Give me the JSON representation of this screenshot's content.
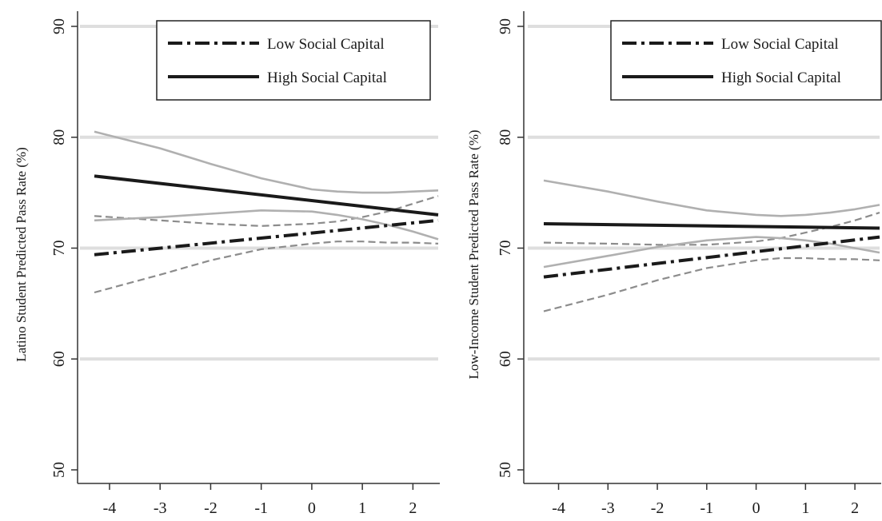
{
  "chart_data": [
    {
      "type": "line",
      "title": "",
      "xlabel": "",
      "ylabel": "Latino Student Predicted Pass Rate (%)",
      "xlim": [
        -4.3,
        2.5
      ],
      "ylim": [
        50,
        90
      ],
      "xticks": [
        "-4",
        "-3",
        "-2",
        "-1",
        "0",
        "1",
        "2"
      ],
      "yticks": [
        "50",
        "60",
        "70",
        "80",
        "90"
      ],
      "grid": "horizontal",
      "legend_position": "top-right",
      "legend": [
        "Low Social Capital",
        "High Social Capital"
      ],
      "series": [
        {
          "name": "Low Social Capital",
          "style": "dash-dot",
          "color": "#1a1a1a",
          "x": [
            -4.3,
            2.5
          ],
          "y": [
            69.4,
            72.5
          ]
        },
        {
          "name": "High Social Capital",
          "style": "solid",
          "color": "#1a1a1a",
          "x": [
            -4.3,
            2.5
          ],
          "y": [
            76.5,
            73.0
          ]
        },
        {
          "style": "dashed-ci",
          "color": "#8c8c8c",
          "x": [
            -4.3,
            -3,
            -2,
            -1,
            0,
            0.5,
            1,
            1.5,
            2,
            2.5
          ],
          "y": [
            66.0,
            67.6,
            68.9,
            69.9,
            70.4,
            70.6,
            70.6,
            70.5,
            70.5,
            70.4
          ]
        },
        {
          "style": "dashed-ci",
          "color": "#8c8c8c",
          "x": [
            -4.3,
            -3,
            -2,
            -1,
            0,
            0.5,
            1,
            1.5,
            2,
            2.5
          ],
          "y": [
            72.9,
            72.5,
            72.2,
            72.0,
            72.2,
            72.4,
            72.8,
            73.3,
            74.0,
            74.7
          ]
        },
        {
          "style": "solid-ci",
          "color": "#b0b0b0",
          "x": [
            -4.3,
            -3,
            -2,
            -1,
            0,
            0.5,
            1,
            1.5,
            2,
            2.5
          ],
          "y": [
            72.5,
            72.8,
            73.1,
            73.4,
            73.3,
            73.0,
            72.6,
            72.1,
            71.5,
            70.8
          ]
        },
        {
          "style": "solid-ci",
          "color": "#b0b0b0",
          "x": [
            -4.3,
            -3,
            -2,
            -1,
            0,
            0.5,
            1,
            1.5,
            2,
            2.5
          ],
          "y": [
            80.5,
            79.0,
            77.6,
            76.3,
            75.3,
            75.1,
            75.0,
            75.0,
            75.1,
            75.2
          ]
        }
      ]
    },
    {
      "type": "line",
      "title": "",
      "xlabel": "",
      "ylabel": "Low-Income Student Predicted Pass Rate (%)",
      "xlim": [
        -4.3,
        2.5
      ],
      "ylim": [
        50,
        90
      ],
      "xticks": [
        "-4",
        "-3",
        "-2",
        "-1",
        "0",
        "1",
        "2"
      ],
      "yticks": [
        "50",
        "60",
        "70",
        "80",
        "90"
      ],
      "grid": "horizontal",
      "legend_position": "top-right",
      "legend": [
        "Low Social Capital",
        "High Social Capital"
      ],
      "series": [
        {
          "name": "Low Social Capital",
          "style": "dash-dot",
          "color": "#1a1a1a",
          "x": [
            -4.3,
            2.5
          ],
          "y": [
            67.4,
            71.0
          ]
        },
        {
          "name": "High Social Capital",
          "style": "solid",
          "color": "#1a1a1a",
          "x": [
            -4.3,
            2.5
          ],
          "y": [
            72.2,
            71.8
          ]
        },
        {
          "style": "dashed-ci",
          "color": "#8c8c8c",
          "x": [
            -4.3,
            -3,
            -2,
            -1,
            0,
            0.5,
            1,
            1.5,
            2,
            2.5
          ],
          "y": [
            64.3,
            65.8,
            67.1,
            68.2,
            68.9,
            69.1,
            69.1,
            69.0,
            69.0,
            68.9
          ]
        },
        {
          "style": "dashed-ci",
          "color": "#8c8c8c",
          "x": [
            -4.3,
            -3,
            -2,
            -1,
            0,
            0.5,
            1,
            1.5,
            2,
            2.5
          ],
          "y": [
            70.5,
            70.4,
            70.3,
            70.3,
            70.6,
            70.9,
            71.4,
            71.9,
            72.5,
            73.2
          ]
        },
        {
          "style": "solid-ci",
          "color": "#b0b0b0",
          "x": [
            -4.3,
            -3,
            -2,
            -1,
            0,
            0.5,
            1,
            1.5,
            2,
            2.5
          ],
          "y": [
            68.3,
            69.3,
            70.1,
            70.7,
            71.0,
            70.9,
            70.7,
            70.4,
            70.0,
            69.6
          ]
        },
        {
          "style": "solid-ci",
          "color": "#b0b0b0",
          "x": [
            -4.3,
            -3,
            -2,
            -1,
            0,
            0.5,
            1,
            1.5,
            2,
            2.5
          ],
          "y": [
            76.1,
            75.1,
            74.2,
            73.4,
            73.0,
            72.9,
            73.0,
            73.2,
            73.5,
            73.9
          ]
        }
      ]
    }
  ]
}
